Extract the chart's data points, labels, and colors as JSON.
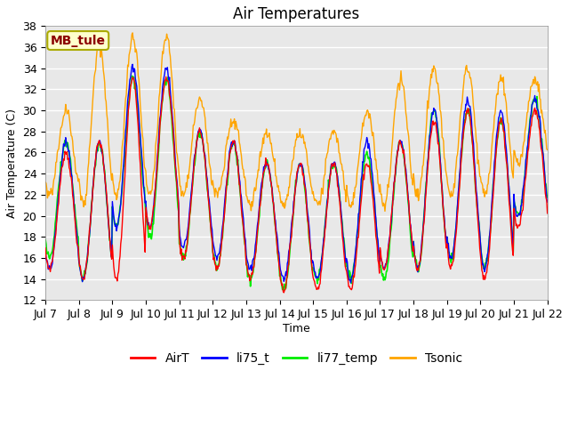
{
  "title": "Air Temperatures",
  "xlabel": "Time",
  "ylabel": "Air Temperature (C)",
  "annotation_text": "MB_tule",
  "annotation_color": "#8B0000",
  "annotation_bg": "#FFFFCC",
  "annotation_border": "#AAAA00",
  "ylim": [
    12,
    38
  ],
  "yticks": [
    12,
    14,
    16,
    18,
    20,
    22,
    24,
    26,
    28,
    30,
    32,
    34,
    36,
    38
  ],
  "xtick_labels": [
    "Jul 7",
    "Jul 8",
    "Jul 9",
    "Jul 10",
    "Jul 11",
    "Jul 12",
    "Jul 13",
    "Jul 14",
    "Jul 15",
    "Jul 16",
    "Jul 17",
    "Jul 18",
    "Jul 19",
    "Jul 20",
    "Jul 21",
    "Jul 22"
  ],
  "series_colors": {
    "AirT": "#FF0000",
    "li75_t": "#0000FF",
    "li77_temp": "#00EE00",
    "Tsonic": "#FFA500"
  },
  "fig_facecolor": "#FFFFFF",
  "ax_facecolor": "#E8E8E8",
  "grid_color": "#FFFFFF",
  "title_fontsize": 12,
  "axis_label_fontsize": 9,
  "tick_fontsize": 9,
  "legend_fontsize": 10,
  "annotation_fontsize": 10,
  "day_maxs_AirT": [
    26,
    27,
    33,
    33,
    28,
    27,
    25,
    25,
    25,
    25,
    27,
    29,
    30,
    29,
    30
  ],
  "day_mins_AirT": [
    15,
    14,
    14,
    19,
    16,
    15,
    14,
    13,
    13,
    13,
    15,
    15,
    15,
    14,
    19
  ],
  "day_maxs_li75": [
    27,
    27,
    34,
    34,
    28,
    27,
    25,
    25,
    25,
    27,
    27,
    30,
    31,
    30,
    31
  ],
  "day_mins_li75": [
    15,
    14,
    19,
    19,
    17,
    16,
    15,
    14,
    14,
    14,
    15,
    15,
    16,
    15,
    20
  ],
  "day_maxs_li77": [
    27,
    27,
    33,
    33,
    28,
    27,
    25,
    25,
    25,
    26,
    27,
    30,
    30,
    29,
    31
  ],
  "day_mins_li77": [
    16,
    14,
    19,
    18,
    16,
    15,
    14,
    13,
    14,
    14,
    14,
    15,
    16,
    15,
    20
  ],
  "day_maxs_tsonic": [
    30,
    36,
    37,
    37,
    31,
    29,
    28,
    28,
    28,
    30,
    33,
    34,
    34,
    33,
    33
  ],
  "day_mins_tsonic": [
    22,
    21,
    22,
    22,
    22,
    22,
    21,
    21,
    21,
    21,
    21,
    22,
    22,
    22,
    25
  ]
}
